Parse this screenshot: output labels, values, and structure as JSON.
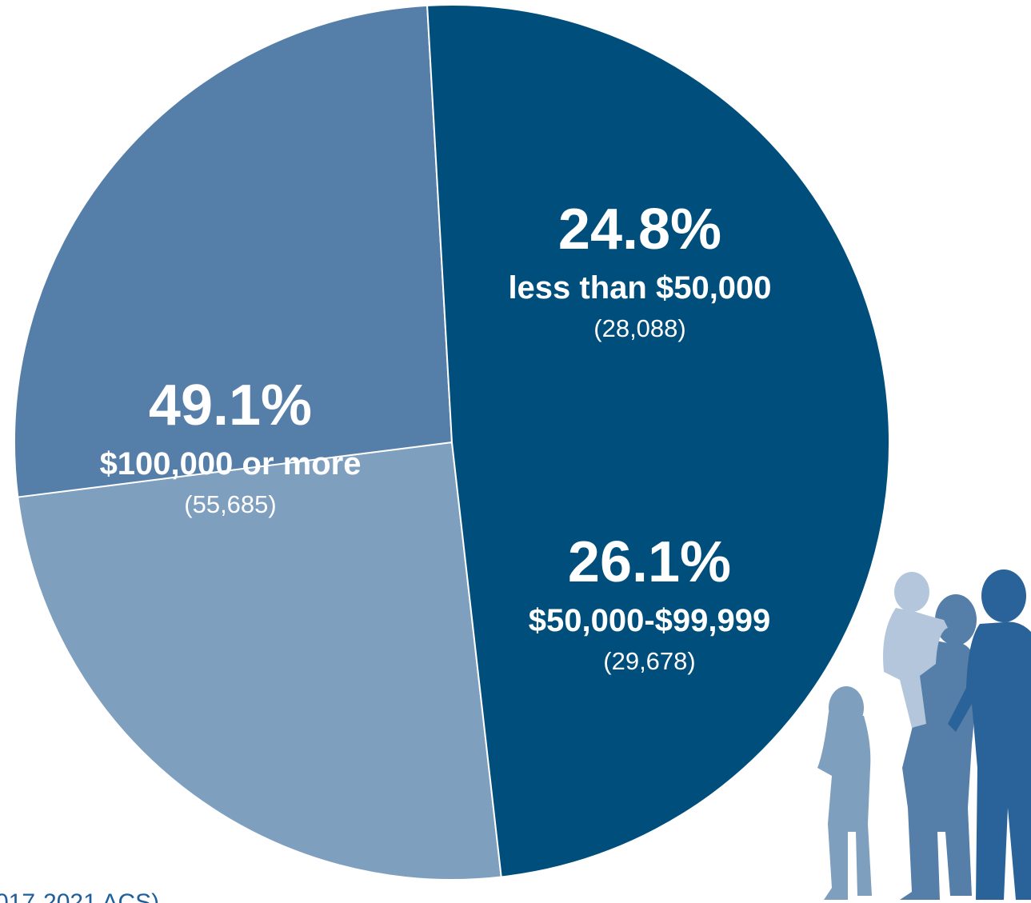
{
  "chart_data": {
    "type": "pie",
    "categories": [
      "less than $50,000",
      "$50,000-$99,999",
      "$100,000 or more"
    ],
    "values": [
      24.8,
      26.1,
      49.1
    ],
    "value_labels": [
      "24.8%",
      "26.1%",
      "49.1%"
    ],
    "count_labels": [
      "(28,088)",
      "(29,678)",
      "(55,685)"
    ],
    "colors": [
      "#7f9fbf",
      "#557ea8",
      "#004e7c"
    ],
    "source_note": "017-2021 ACS)"
  }
}
